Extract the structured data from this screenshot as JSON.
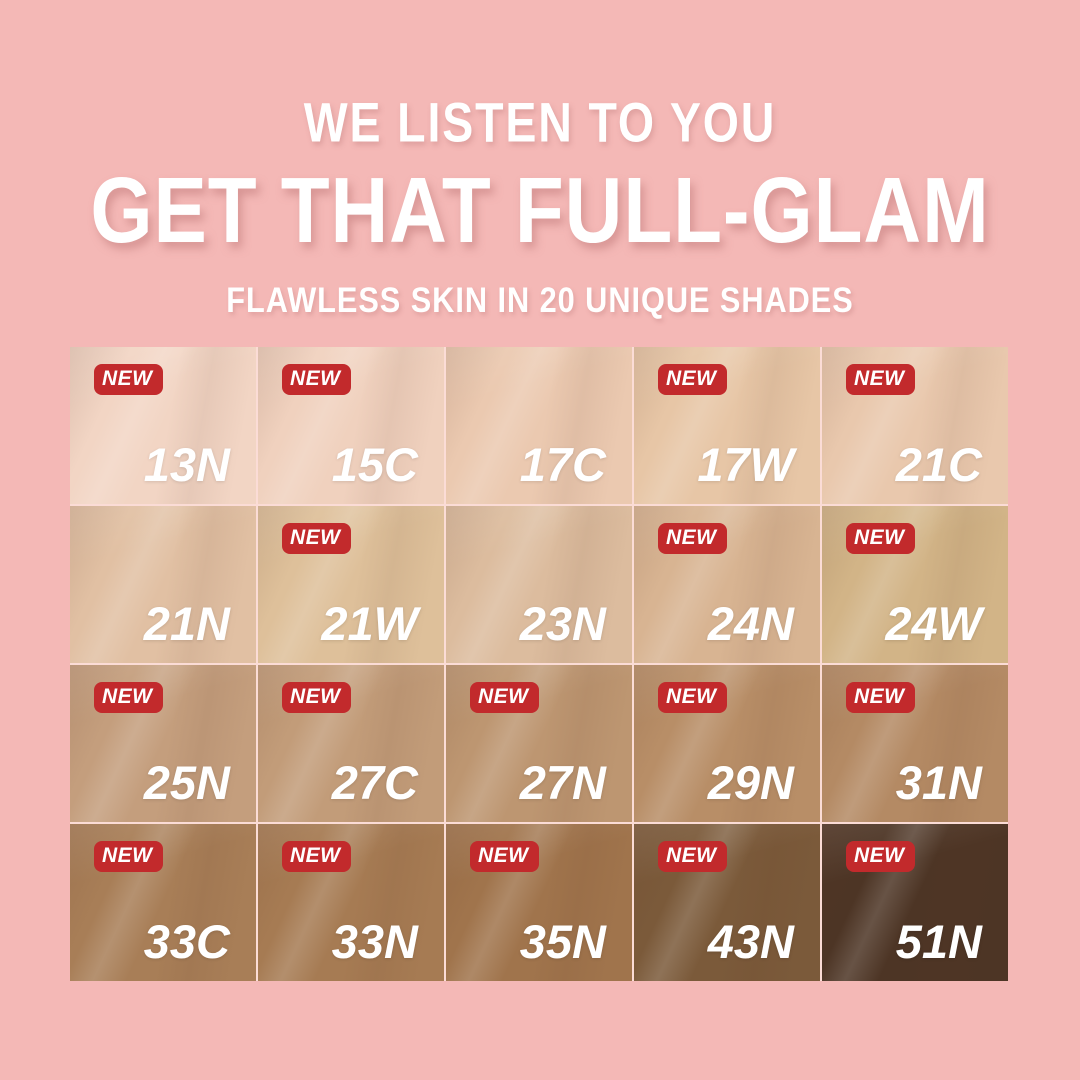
{
  "page": {
    "background": "#f4b8b6",
    "text_color": "#ffffff"
  },
  "header": {
    "line1": "WE LISTEN TO YOU",
    "line2": "GET THAT FULL-GLAM",
    "line3": "FLAWLESS SKIN IN 20 UNIQUE SHADES"
  },
  "badge": {
    "label": "NEW",
    "bg": "#c22a2c",
    "fg": "#ffffff"
  },
  "grid": {
    "rows": 4,
    "cols": 5,
    "gap_color": "#fbdcd6",
    "code_color": "#ffffff",
    "shades": [
      {
        "code": "13N",
        "new": true,
        "color": "#f2d5c4"
      },
      {
        "code": "15C",
        "new": true,
        "color": "#f0d1be"
      },
      {
        "code": "17C",
        "new": false,
        "color": "#ebc9b0"
      },
      {
        "code": "17W",
        "new": true,
        "color": "#e7c6a6"
      },
      {
        "code": "21C",
        "new": true,
        "color": "#e9c8ad"
      },
      {
        "code": "21N",
        "new": false,
        "color": "#e1c0a3"
      },
      {
        "code": "21W",
        "new": true,
        "color": "#dec09a"
      },
      {
        "code": "23N",
        "new": false,
        "color": "#dcbc9e"
      },
      {
        "code": "24N",
        "new": true,
        "color": "#d8b492"
      },
      {
        "code": "24W",
        "new": true,
        "color": "#d2b487"
      },
      {
        "code": "25N",
        "new": true,
        "color": "#c49e7d"
      },
      {
        "code": "27C",
        "new": true,
        "color": "#c29c79"
      },
      {
        "code": "27N",
        "new": true,
        "color": "#bd9671"
      },
      {
        "code": "29N",
        "new": true,
        "color": "#b88e67"
      },
      {
        "code": "31N",
        "new": true,
        "color": "#b48a64"
      },
      {
        "code": "33C",
        "new": true,
        "color": "#a87e57"
      },
      {
        "code": "33N",
        "new": true,
        "color": "#a67b53"
      },
      {
        "code": "35N",
        "new": true,
        "color": "#a0744c"
      },
      {
        "code": "43N",
        "new": true,
        "color": "#7b5a3a"
      },
      {
        "code": "51N",
        "new": true,
        "color": "#4d3525"
      }
    ]
  }
}
